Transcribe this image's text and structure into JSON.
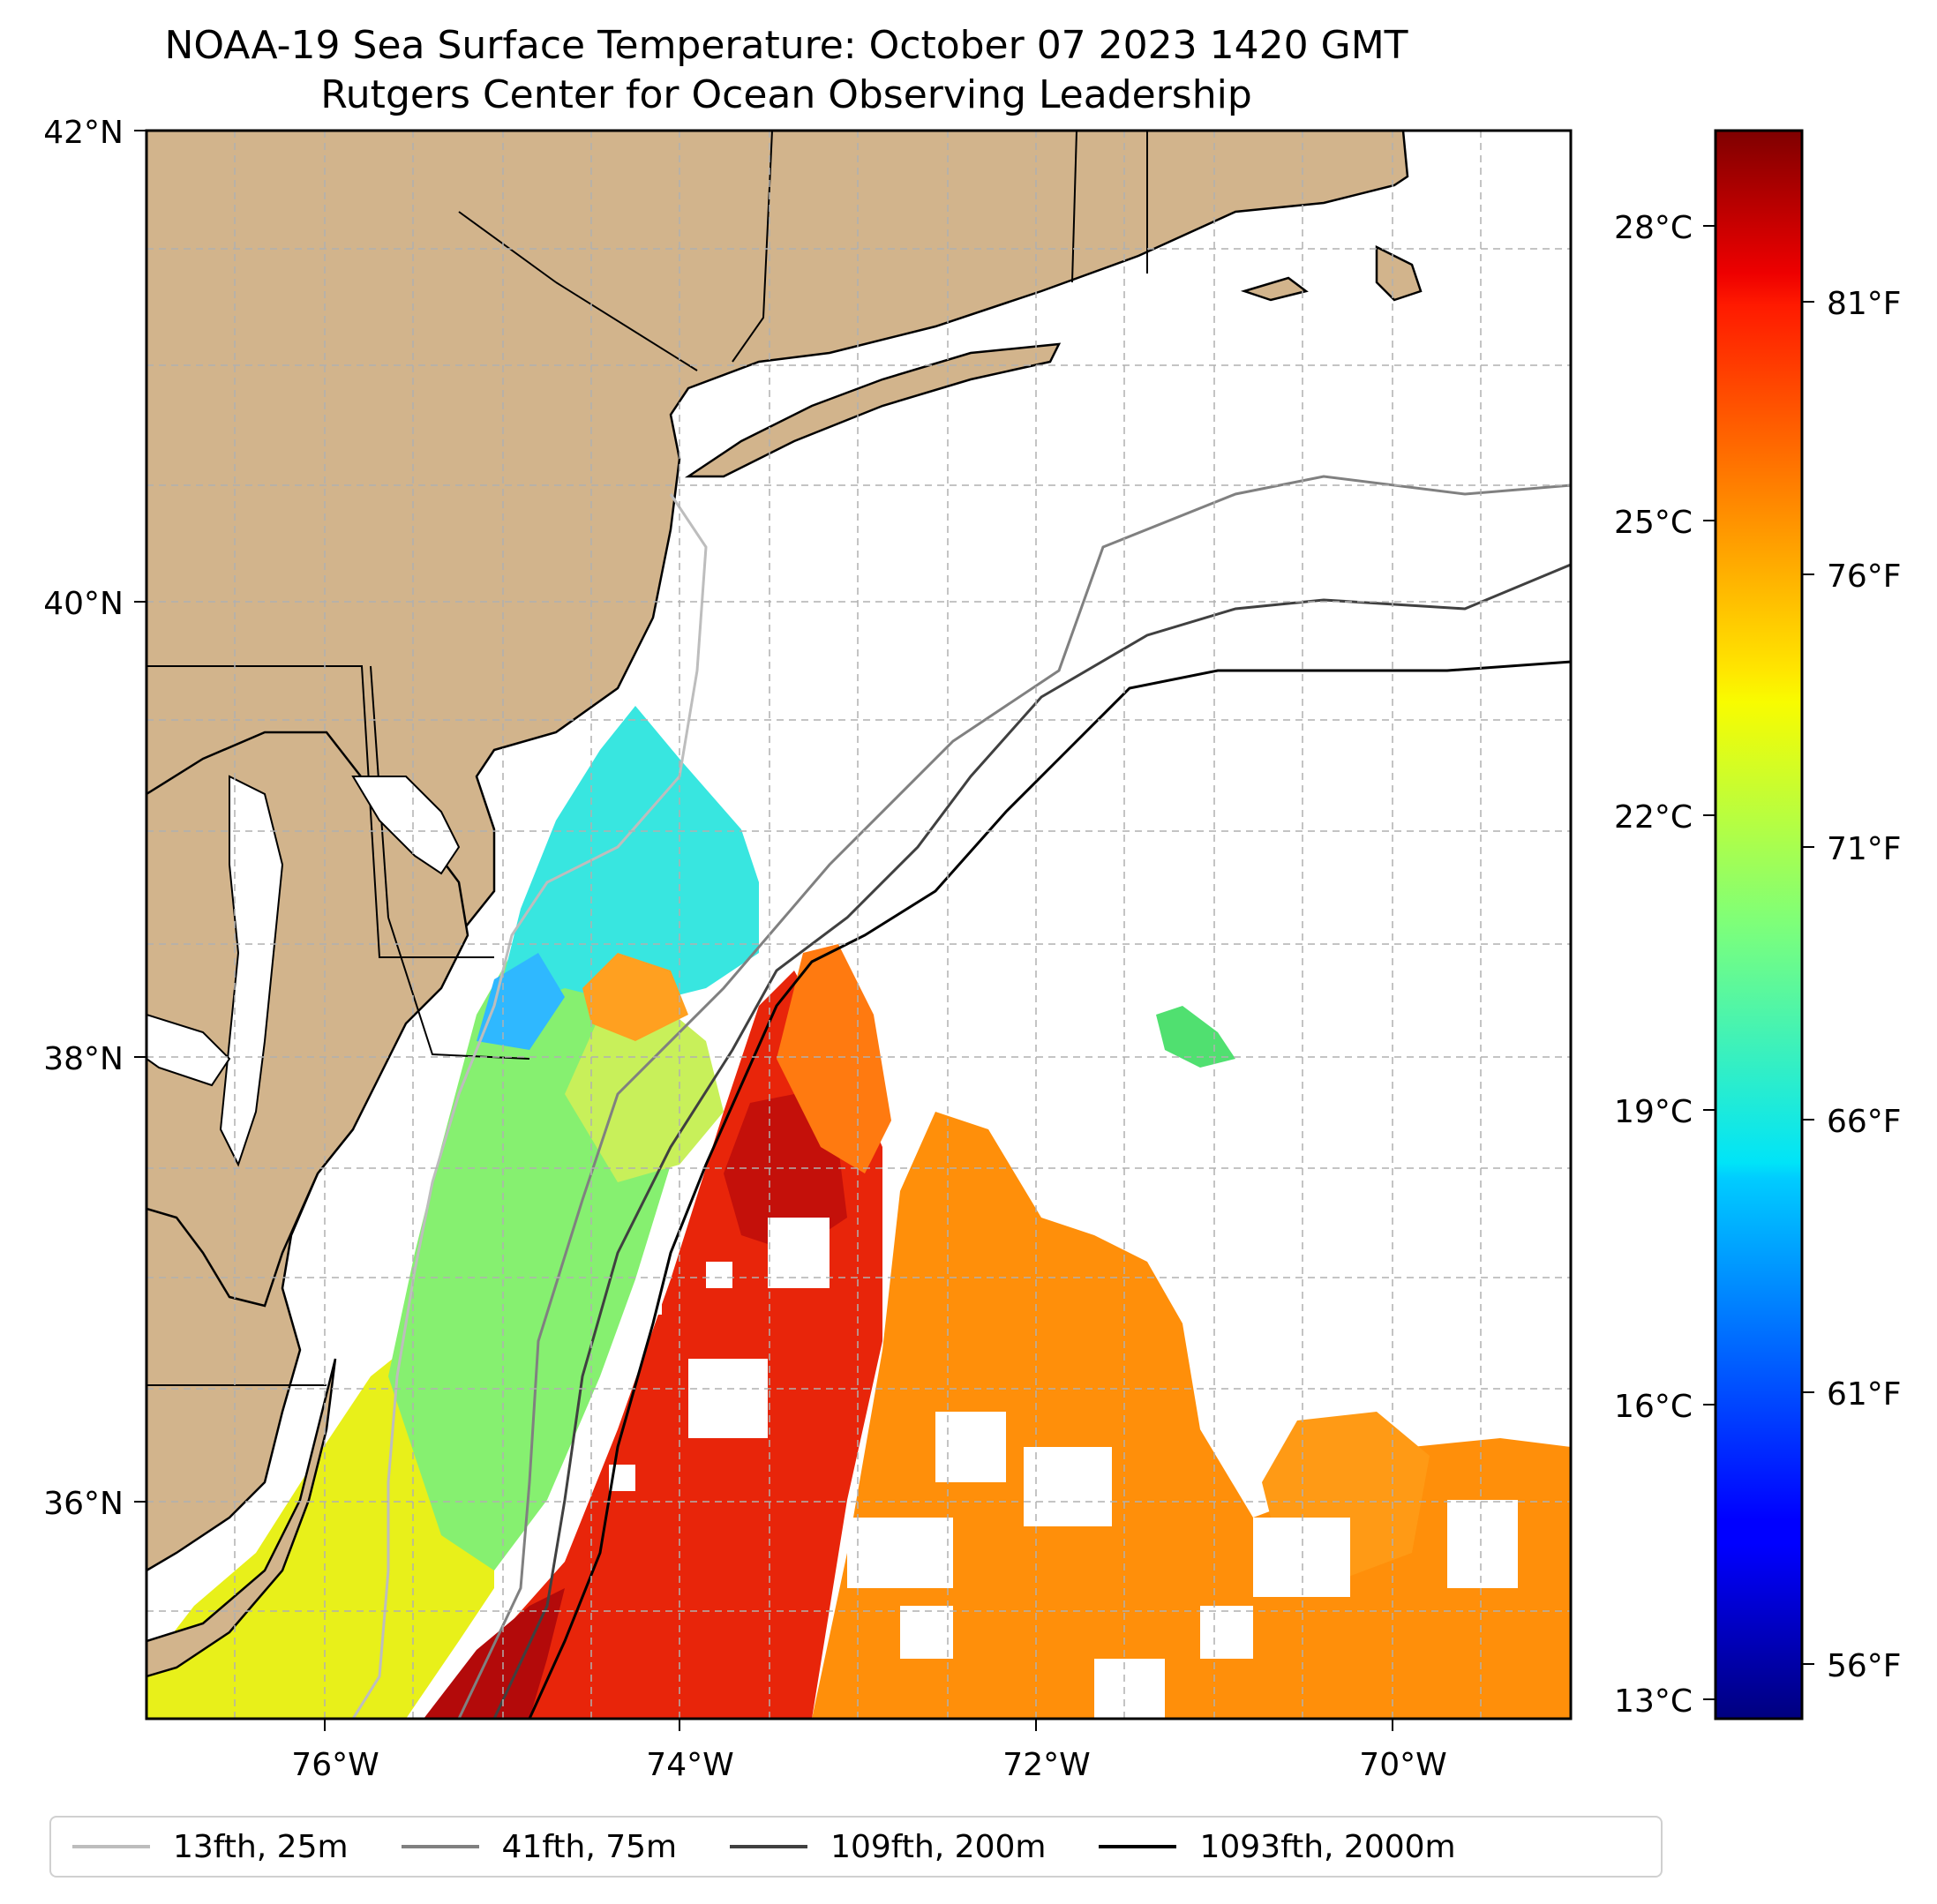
{
  "title": {
    "line1": "NOAA-19 Sea Surface Temperature: October 07 2023 1420 GMT",
    "line2": "Rutgers Center for Ocean Observing Leadership"
  },
  "map": {
    "lat_labels": [
      "42°N",
      "40°N",
      "38°N",
      "36°N"
    ],
    "lon_labels": [
      "76°W",
      "74°W",
      "72°W",
      "70°W"
    ],
    "extent": {
      "lon_min": -77,
      "lon_max": -69,
      "lat_min": 35,
      "lat_max": 42
    },
    "gridlines": true,
    "colors": {
      "land": "#d2b48c",
      "ocean_nodata": "#ffffff",
      "coast": "#000000",
      "grid": "#b0b0b0"
    }
  },
  "colorbar": {
    "colormap": "jet",
    "celsius_labels": [
      "28°C",
      "25°C",
      "22°C",
      "19°C",
      "16°C",
      "13°C"
    ],
    "fahrenheit_labels": [
      "81°F",
      "76°F",
      "71°F",
      "66°F",
      "61°F",
      "56°F"
    ]
  },
  "legend": {
    "items": [
      {
        "label": "13fth, 25m",
        "color": "#bdbdbd"
      },
      {
        "label": "41fth, 75m",
        "color": "#808080"
      },
      {
        "label": "109fth, 200m",
        "color": "#404040"
      },
      {
        "label": "1093fth, 2000m",
        "color": "#000000"
      }
    ]
  }
}
